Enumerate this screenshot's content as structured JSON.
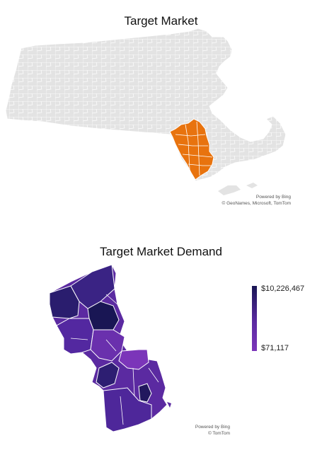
{
  "map1": {
    "title": "Target Market",
    "credit_line1": "Powered by Bing",
    "credit_line2": "© GeoNames, Microsoft, TomTom",
    "base_color": "#e3e3e3",
    "highlight_color": "#e8730e"
  },
  "map2": {
    "title": "Target Market Demand",
    "credit_line1": "Powered by Bing",
    "credit_line2": "© TomTom",
    "legend": {
      "max_label": "$10,226,467",
      "min_label": "$71,117",
      "max_color": "#191654",
      "min_color": "#7b35b9"
    }
  }
}
